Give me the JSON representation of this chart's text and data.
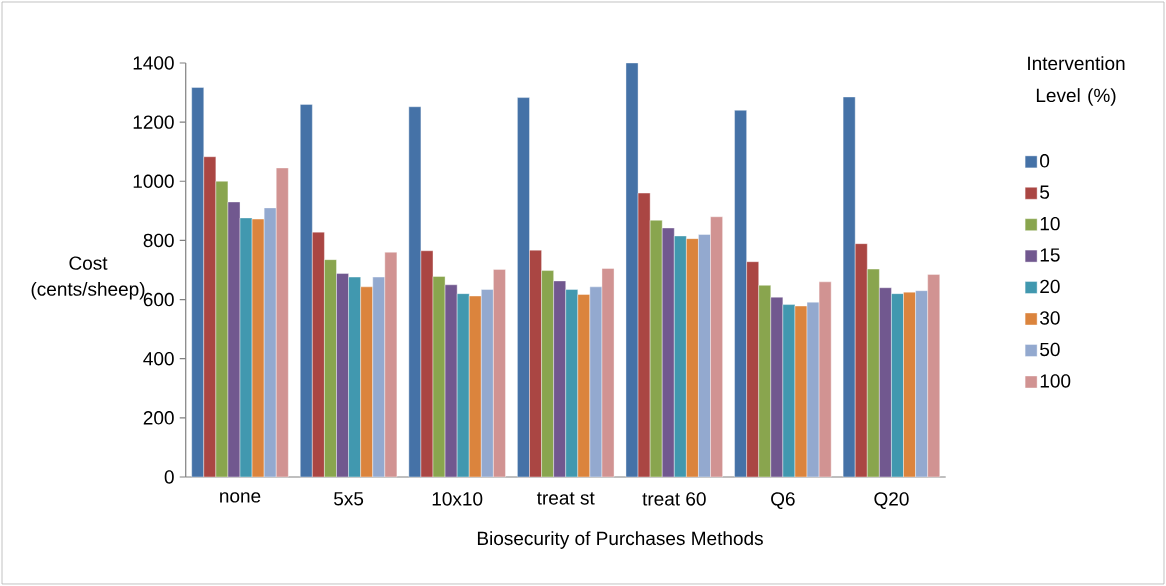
{
  "chart_data": {
    "type": "bar",
    "xlabel": "Biosecurity of Purchases Methods",
    "ylabel": "Cost (cents/sheep)",
    "legend_title": "Intervention Level (%)",
    "categories": [
      "none",
      "5x5",
      "10x10",
      "treat st",
      "treat 60",
      "Q6",
      "Q20"
    ],
    "series": [
      {
        "name": "0",
        "color": "#4572a7",
        "values": [
          1317,
          1260,
          1252,
          1283,
          1400,
          1240,
          1285
        ]
      },
      {
        "name": "5",
        "color": "#aa4643",
        "values": [
          1083,
          828,
          765,
          767,
          960,
          728,
          789
        ]
      },
      {
        "name": "10",
        "color": "#89a54e",
        "values": [
          1000,
          735,
          678,
          698,
          868,
          648,
          703
        ]
      },
      {
        "name": "15",
        "color": "#71588f",
        "values": [
          930,
          688,
          650,
          663,
          842,
          608,
          640
        ]
      },
      {
        "name": "20",
        "color": "#4198af",
        "values": [
          876,
          676,
          620,
          634,
          815,
          583,
          620
        ]
      },
      {
        "name": "30",
        "color": "#db843d",
        "values": [
          872,
          643,
          612,
          617,
          806,
          578,
          625
        ]
      },
      {
        "name": "50",
        "color": "#93a9cf",
        "values": [
          910,
          676,
          634,
          643,
          820,
          591,
          630
        ]
      },
      {
        "name": "100",
        "color": "#d19392",
        "values": [
          1045,
          760,
          702,
          705,
          880,
          660,
          685
        ]
      }
    ],
    "ylim": [
      0,
      1400
    ],
    "yticks": [
      0,
      200,
      400,
      600,
      800,
      1000,
      1200,
      1400
    ],
    "grid": false,
    "legend": "right"
  }
}
